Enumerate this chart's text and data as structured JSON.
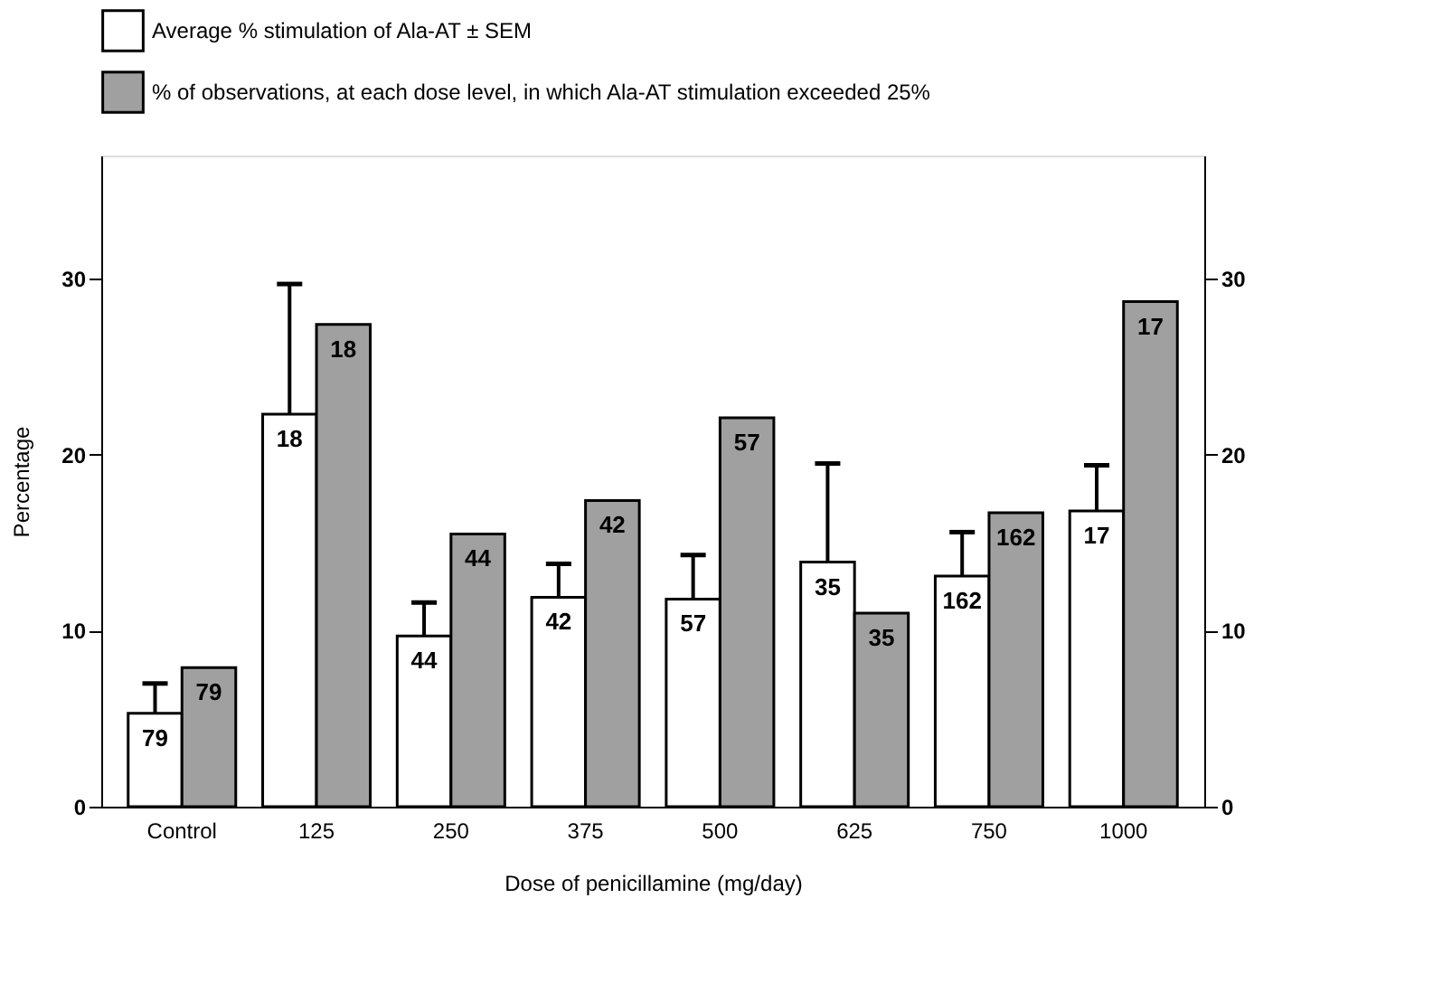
{
  "chart_data": {
    "type": "bar",
    "xlabel": "Dose of penicillamine (mg/day)",
    "ylabel": "Percentage",
    "categories": [
      "Control",
      "125",
      "250",
      "375",
      "500",
      "625",
      "750",
      "1000"
    ],
    "series": [
      {
        "name": "Average % stimulation of Ala-AT ± SEM",
        "color": "#ffffff",
        "values": [
          5.3,
          22.3,
          9.7,
          11.9,
          11.8,
          13.9,
          13.1,
          16.8
        ],
        "errors": [
          [
            5.3,
            7.0
          ],
          [
            22.3,
            29.7
          ],
          [
            9.7,
            11.6
          ],
          [
            11.9,
            13.8
          ],
          [
            11.8,
            14.3
          ],
          [
            13.9,
            19.5
          ],
          [
            13.1,
            15.6
          ],
          [
            16.8,
            19.4
          ]
        ]
      },
      {
        "name": "% of observations, at each dose level, in which Ala-AT stimulation exceeded 25%",
        "color": "#a0a0a0",
        "values": [
          7.9,
          27.4,
          15.5,
          17.4,
          22.1,
          11.0,
          16.7,
          28.7
        ]
      }
    ],
    "annotations": [
      {
        "text": "79",
        "x": "Control",
        "y": 5.3
      },
      {
        "text": "79",
        "x": "Control",
        "y": 7.9
      },
      {
        "text": "18",
        "x": "125",
        "y": 22.3
      },
      {
        "text": "18",
        "x": "125",
        "y": 27.4
      },
      {
        "text": "44",
        "x": "250",
        "y": 9.7
      },
      {
        "text": "44",
        "x": "250",
        "y": 15.5
      },
      {
        "text": "42",
        "x": "375",
        "y": 11.9
      },
      {
        "text": "42",
        "x": "375",
        "y": 17.4
      },
      {
        "text": "57",
        "x": "500",
        "y": 11.8
      },
      {
        "text": "57",
        "x": "500",
        "y": 22.1
      },
      {
        "text": "35",
        "x": "625",
        "y": 13.9
      },
      {
        "text": "35",
        "x": "625",
        "y": 11.0
      },
      {
        "text": "162",
        "x": "750",
        "y": 13.1
      },
      {
        "text": "162",
        "x": "750",
        "y": 16.7
      },
      {
        "text": "17",
        "x": "1000",
        "y": 16.8
      },
      {
        "text": "17",
        "x": "1000",
        "y": 28.7
      }
    ],
    "ylim": [
      0,
      37
    ],
    "yticks": [
      0,
      10,
      20,
      30
    ],
    "y2lim": [
      0,
      37
    ],
    "y2ticks": [
      0,
      10,
      20,
      30
    ],
    "grid": false,
    "legend": "top"
  }
}
